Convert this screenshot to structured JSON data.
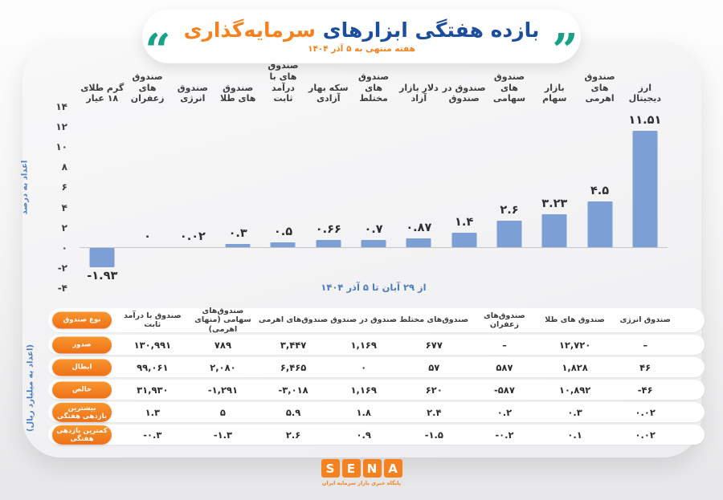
{
  "title": {
    "part_blue": "بازده هفتگی ابزارهای",
    "part_orange": "سرمایه‌گذاری",
    "subtitle": "هفته منتهی به ۵ آذر ۱۴۰۴",
    "quote_open": "“",
    "quote_close": "”"
  },
  "chart_data": [
    {
      "type": "bar",
      "title": "بازده هفتگی ابزارهای سرمایه‌گذاری",
      "categories": [
        "ارز دیجیتال",
        "صندوق های اهرمی",
        "بازار سهام",
        "صندوق های سهامی",
        "صندوق در صندوق",
        "دلار بازار آزاد",
        "صندوق های مختلط",
        "سکه بهار آزادی",
        "صندوق های با درآمد ثابت",
        "صندوق های طلا",
        "صندوق انرژی",
        "صندوق های زعفران",
        "گرم طلای ۱۸ عیار"
      ],
      "values": [
        11.51,
        4.5,
        3.23,
        2.6,
        1.4,
        0.87,
        0.7,
        0.66,
        0.5,
        0.3,
        0.02,
        0,
        -1.93
      ],
      "value_labels": [
        "۱۱.۵۱",
        "۴.۵",
        "۳.۲۳",
        "۲.۶",
        "۱.۴",
        "۰.۸۷",
        "۰.۷",
        "۰.۶۶",
        "۰.۵",
        "۰.۳",
        "۰.۰۲",
        "۰",
        "-۱.۹۳"
      ],
      "ylabel": "اعداد به درصد",
      "xlabel": "از ۲۹ آبان تا ۵ آذر ۱۴۰۴",
      "ylim": [
        -4,
        14
      ],
      "grid": false,
      "legend": "none",
      "yticks": {
        "values": [
          14,
          12,
          10,
          8,
          6,
          4,
          2,
          0,
          -2,
          -4
        ],
        "labels": [
          "۱۴",
          "۱۲",
          "۱۰",
          "۸",
          "۶",
          "۴",
          "۲",
          "۰",
          "-۲",
          "-۴"
        ]
      }
    },
    {
      "type": "table",
      "corner_label": "نوع صندوق",
      "units_label": "(اعداد به میلیارد ریال)",
      "columns": [
        "صندوق انرژی",
        "صندوق های طلا",
        "صندوق‌های زعفران",
        "صندوق‌های مختلط",
        "صندوق در صندوق",
        "صندوق‌های اهرمی",
        "صندوق‌های سهامی (منهای اهرمی)",
        "صندوق با درآمد ثابت"
      ],
      "rows": [
        {
          "label": "صدور",
          "values": [
            "–",
            "۱۲,۷۲۰",
            "–",
            "۶۷۷",
            "۱,۱۶۹",
            "۳,۴۴۷",
            "۷۸۹",
            "۱۳۰,۹۹۱"
          ]
        },
        {
          "label": "ابطال",
          "values": [
            "۴۶",
            "۱,۸۲۸",
            "۵۸۷",
            "۵۷",
            "۰",
            "۶,۴۶۵",
            "۲,۰۸۰",
            "۹۹,۰۶۱"
          ]
        },
        {
          "label": "خالص",
          "values": [
            "-۴۶",
            "۱۰,۸۹۲",
            "-۵۸۷",
            "۶۲۰",
            "۱,۱۶۹",
            "-۳,۰۱۸",
            "-۱,۲۹۱",
            "۳۱,۹۳۰"
          ]
        },
        {
          "label": "بیشترین بازدهی هفتگی",
          "values": [
            "۰.۰۲",
            "۰.۳",
            "۰.۲",
            "۲.۴",
            "۱.۸",
            "۵.۹",
            "۵",
            "۱.۳"
          ]
        },
        {
          "label": "کمترین بازدهی هفتگی",
          "values": [
            "۰.۰۲",
            "۰.۱",
            "-۰.۲",
            "-۱.۵",
            "۰.۹",
            "۲.۶",
            "-۱.۳",
            "-۰.۳"
          ]
        }
      ]
    }
  ],
  "footer": {
    "logo_letters": [
      "S",
      "E",
      "N",
      "A"
    ],
    "logo_caption": "پایگاه خبری بازار سرمایه ایران"
  },
  "colors": {
    "orange": "#F5821E",
    "blue": "#1C4E9D",
    "teal": "#17A189",
    "bar_blue": "#7C9FD6",
    "axis_blue": "#4d7ec0"
  }
}
